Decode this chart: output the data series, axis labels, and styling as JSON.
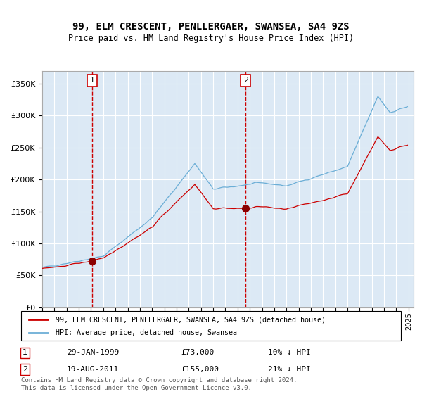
{
  "title1": "99, ELM CRESCENT, PENLLERGAER, SWANSEA, SA4 9ZS",
  "title2": "Price paid vs. HM Land Registry's House Price Index (HPI)",
  "legend_line1": "99, ELM CRESCENT, PENLLERGAER, SWANSEA, SA4 9ZS (detached house)",
  "legend_line2": "HPI: Average price, detached house, Swansea",
  "transaction1_date": "29-JAN-1999",
  "transaction1_price": 73000,
  "transaction1_label": "10% ↓ HPI",
  "transaction2_date": "19-AUG-2011",
  "transaction2_price": 155000,
  "transaction2_label": "21% ↓ HPI",
  "footer": "Contains HM Land Registry data © Crown copyright and database right 2024.\nThis data is licensed under the Open Government Licence v3.0.",
  "hpi_color": "#6baed6",
  "price_color": "#cc0000",
  "marker_color": "#8b0000",
  "vline_color": "#cc0000",
  "background_color": "#dce9f5",
  "ylim": [
    0,
    370000
  ],
  "yticks": [
    0,
    50000,
    100000,
    150000,
    200000,
    250000,
    300000,
    350000
  ]
}
